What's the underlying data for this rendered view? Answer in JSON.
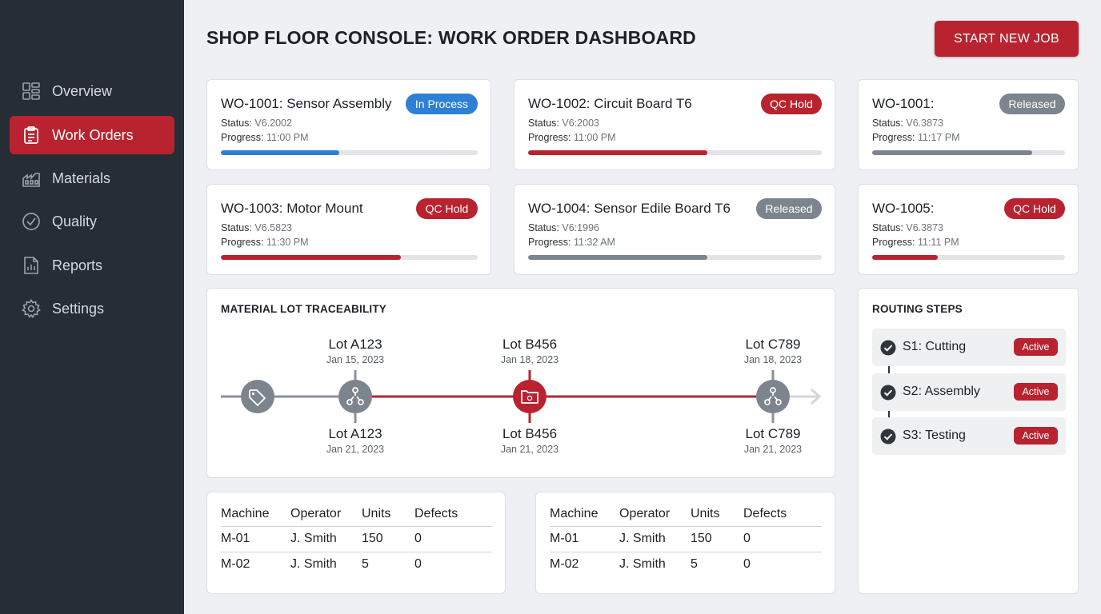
{
  "header": {
    "title": "SHOP FLOOR CONSOLE: WORK ORDER DASHBOARD",
    "start_button": "START NEW JOB"
  },
  "sidebar": {
    "items": [
      {
        "label": "Overview",
        "icon": "dashboard-icon",
        "active": false
      },
      {
        "label": "Work Orders",
        "icon": "clipboard-icon",
        "active": true
      },
      {
        "label": "Materials",
        "icon": "materials-icon",
        "active": false
      },
      {
        "label": "Quality",
        "icon": "check-circle-icon",
        "active": false
      },
      {
        "label": "Reports",
        "icon": "reports-icon",
        "active": false
      },
      {
        "label": "Settings",
        "icon": "gear-icon",
        "active": false
      }
    ]
  },
  "work_orders": [
    {
      "title": "WO-1001: Sensor Assembly",
      "status_label": "Status:",
      "status_value": "V6.2002",
      "progress_label": "Progress:",
      "progress_value": "11:00 PM",
      "badge": "In Process",
      "badge_color": "#2e7fd6",
      "progress": 0.46
    },
    {
      "title": "WO-1002: Circuit Board T6",
      "status_label": "Status:",
      "status_value": "V6:2003",
      "progress_label": "Progress:",
      "progress_value": "11:00 PM",
      "badge": "QC Hold",
      "badge_color": "#b8232f",
      "progress": 0.61
    },
    {
      "title": "WO-1001:",
      "status_label": "Status:",
      "status_value": "V6.3873",
      "progress_label": "Progress:",
      "progress_value": "11:17 PM",
      "badge": "Released",
      "badge_color": "#7c848d",
      "progress": 0.83
    },
    {
      "title": "WO-1003: Motor Mount",
      "status_label": "Status:",
      "status_value": "V6.5823",
      "progress_label": "Progress:",
      "progress_value": "11:30 PM",
      "badge": "QC Hold",
      "badge_color": "#b8232f",
      "progress": 0.7
    },
    {
      "title": "WO-1004: Sensor Edile Board T6",
      "status_label": "Status:",
      "status_value": "V6:1996",
      "progress_label": "Progress:",
      "progress_value": "11:32 AM",
      "badge": "Released",
      "badge_color": "#7c848d",
      "progress": 0.61
    },
    {
      "title": "WO-1005:",
      "status_label": "Status:",
      "status_value": "V6.3873",
      "progress_label": "Progress:",
      "progress_value": "11:11 PM",
      "badge": "QC Hold",
      "badge_color": "#b8232f",
      "progress": 0.34
    }
  ],
  "traceability": {
    "title": "MATERIAL LOT TRACEABILITY",
    "nodes": [
      {
        "icon": "tag-icon",
        "color": "#7c848d"
      },
      {
        "icon": "branch-icon",
        "color": "#7c848d",
        "top_lot": "Lot A123",
        "top_date": "Jan 15, 2023",
        "bottom_lot": "Lot A123",
        "bottom_date": "Jan 21, 2023"
      },
      {
        "icon": "folder-icon",
        "color": "#b8232f",
        "top_lot": "Lot B456",
        "top_date": "Jan 18, 2023",
        "bottom_lot": "Lot B456",
        "bottom_date": "Jan 21, 2023"
      },
      {
        "icon": "branch-icon",
        "color": "#7c848d",
        "top_lot": "Lot C789",
        "top_date": "Jan 18, 2023",
        "bottom_lot": "Lot C789",
        "bottom_date": "Jan 21, 2023"
      }
    ]
  },
  "routing": {
    "title": "ROUTING STEPS",
    "steps": [
      {
        "name": "S1: Cutting",
        "badge": "Active"
      },
      {
        "name": "S2: Assembly",
        "badge": "Active"
      },
      {
        "name": "S3: Testing",
        "badge": "Active"
      }
    ]
  },
  "tables": [
    {
      "headers": [
        "Machine",
        "Operator",
        "Units",
        "Defects"
      ],
      "rows": [
        [
          "M-01",
          "J. Smith",
          "150",
          "0"
        ],
        [
          "M-02",
          "J. Smith",
          "5",
          "0"
        ]
      ]
    },
    {
      "headers": [
        "Machine",
        "Operator",
        "Units",
        "Defects"
      ],
      "rows": [
        [
          "M-01",
          "J. Smith",
          "150",
          "0"
        ],
        [
          "M-02",
          "J. Smith",
          "5",
          "0"
        ]
      ]
    }
  ],
  "colors": {
    "sidebar": "#262d36",
    "accent": "#b8232f",
    "blue": "#2e7fd6",
    "gray": "#7c848d",
    "background": "#eef0f3"
  }
}
